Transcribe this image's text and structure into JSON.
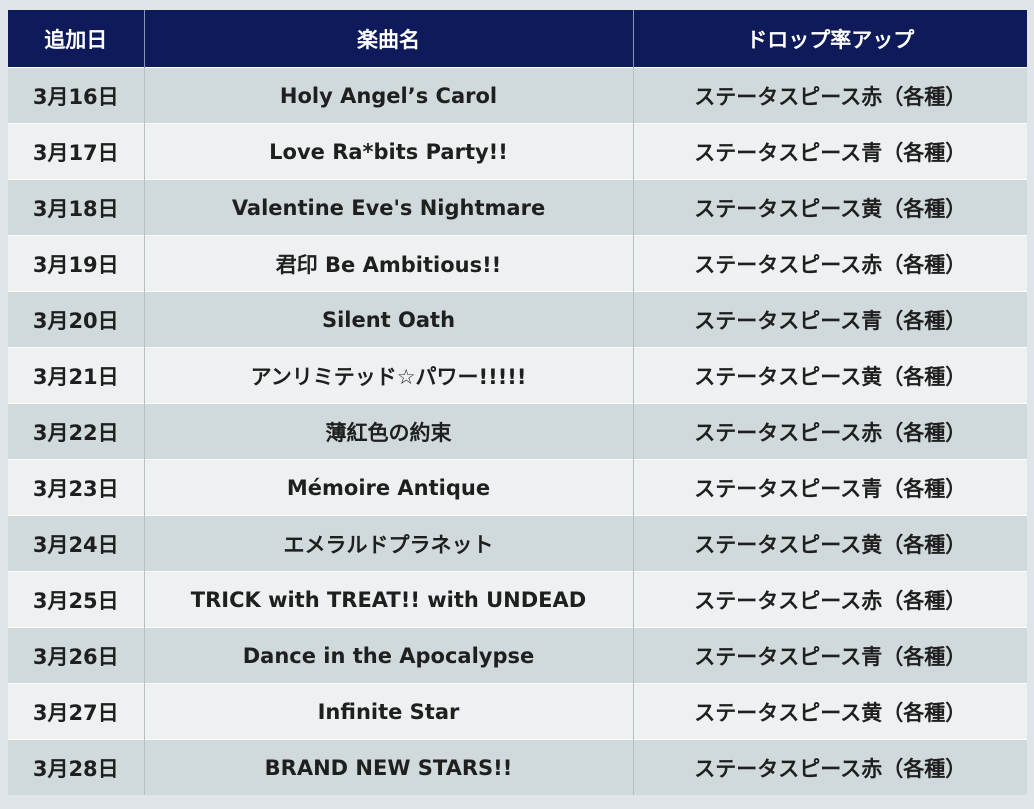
{
  "table": {
    "headers": [
      "追加日",
      "楽曲名",
      "ドロップ率アップ"
    ],
    "rows": [
      [
        "3月16日",
        "Holy Angel’s Carol",
        "ステータスピース赤（各種）"
      ],
      [
        "3月17日",
        "Love Ra*bits Party!!",
        "ステータスピース青（各種）"
      ],
      [
        "3月18日",
        "Valentine Eve's Nightmare",
        "ステータスピース黄（各種）"
      ],
      [
        "3月19日",
        "君印 Be Ambitious!!",
        "ステータスピース赤（各種）"
      ],
      [
        "3月20日",
        "Silent Oath",
        "ステータスピース青（各種）"
      ],
      [
        "3月21日",
        "アンリミテッド☆パワー!!!!!",
        "ステータスピース黄（各種）"
      ],
      [
        "3月22日",
        "薄紅色の約束",
        "ステータスピース赤（各種）"
      ],
      [
        "3月23日",
        "Mémoire Antique",
        "ステータスピース青（各種）"
      ],
      [
        "3月24日",
        "エメラルドプラネット",
        "ステータスピース黄（各種）"
      ],
      [
        "3月25日",
        "TRICK with TREAT!! with UNDEAD",
        "ステータスピース赤（各種）"
      ],
      [
        "3月26日",
        "Dance in the Apocalypse",
        "ステータスピース青（各種）"
      ],
      [
        "3月27日",
        "Infinite Star",
        "ステータスピース黄（各種）"
      ],
      [
        "3月28日",
        "BRAND NEW STARS!!",
        "ステータスピース赤（各種）"
      ]
    ]
  },
  "colors": {
    "header_bg": "#0f1a5a",
    "row_odd_bg": "#d0d9dc",
    "row_even_bg": "#eef1f2"
  }
}
